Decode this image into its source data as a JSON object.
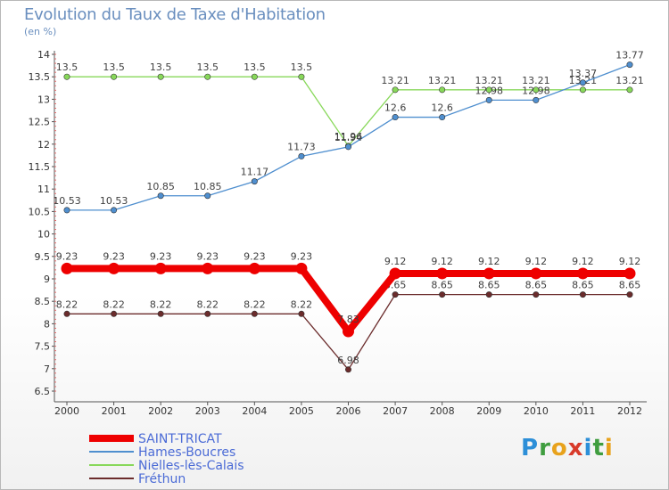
{
  "title": "Evolution du Taux de Taxe d'Habitation",
  "subtitle": "(en %)",
  "logo_letters": [
    "P",
    "r",
    "o",
    "x",
    "i",
    "t",
    "i"
  ],
  "logo_colors": [
    "#2d8fd8",
    "#3f9d3f",
    "#e8a21c",
    "#d83a2a",
    "#2d8fd8",
    "#3f9d3f",
    "#e8a21c"
  ],
  "chart_data": {
    "type": "line",
    "title": "Evolution du Taux de Taxe d'Habitation",
    "ylabel": "(en %)",
    "xlabel": "",
    "x": [
      "2000",
      "2001",
      "2002",
      "2003",
      "2004",
      "2005",
      "2006",
      "2007",
      "2008",
      "2009",
      "2010",
      "2011",
      "2012"
    ],
    "ylim": [
      6.5,
      14
    ],
    "yticks": [
      "6.5",
      "7",
      "7.5",
      "8",
      "8.5",
      "9",
      "9.5",
      "10",
      "10.5",
      "11",
      "11.5",
      "12",
      "12.5",
      "13",
      "13.5",
      "14"
    ],
    "grid": false,
    "legend": "bottom-left",
    "series": [
      {
        "name": "SAINT-TRICAT",
        "color": "#ee0000",
        "values": [
          9.23,
          9.23,
          9.23,
          9.23,
          9.23,
          9.23,
          7.83,
          9.12,
          9.12,
          9.12,
          9.12,
          9.12,
          9.12
        ],
        "labels": [
          "9.23",
          "9.23",
          "9.23",
          "9.23",
          "9.23",
          "9.23",
          "7.83",
          "9.12",
          "9.12",
          "9.12",
          "9.12",
          "9.12",
          "9.12"
        ]
      },
      {
        "name": "Hames-Boucres",
        "color": "#4f8fcf",
        "values": [
          10.53,
          10.53,
          10.85,
          10.85,
          11.17,
          11.73,
          11.94,
          12.6,
          12.6,
          12.98,
          12.98,
          13.37,
          13.77
        ],
        "labels": [
          "10.53",
          "10.53",
          "10.85",
          "10.85",
          "11.17",
          "11.73",
          "11.94",
          "12.6",
          "12.6",
          "12.98",
          "12.98",
          "13.37",
          "13.77"
        ]
      },
      {
        "name": "Nielles-lès-Calais",
        "color": "#88d85a",
        "values": [
          13.5,
          13.5,
          13.5,
          13.5,
          13.5,
          13.5,
          11.96,
          13.21,
          13.21,
          13.21,
          13.21,
          13.21,
          13.21
        ],
        "labels": [
          "13.5",
          "13.5",
          "13.5",
          "13.5",
          "13.5",
          "13.5",
          "11.96",
          "13.21",
          "13.21",
          "13.21",
          "13.21",
          "13.21",
          "13.21"
        ]
      },
      {
        "name": "Fréthun",
        "color": "#6b2c2c",
        "values": [
          8.22,
          8.22,
          8.22,
          8.22,
          8.22,
          8.22,
          6.98,
          8.65,
          8.65,
          8.65,
          8.65,
          8.65,
          8.65
        ],
        "labels": [
          "8.22",
          "8.22",
          "8.22",
          "8.22",
          "8.22",
          "8.22",
          "6.98",
          "8.65",
          "8.65",
          "8.65",
          "8.65",
          "8.65",
          "8.65"
        ]
      }
    ]
  }
}
